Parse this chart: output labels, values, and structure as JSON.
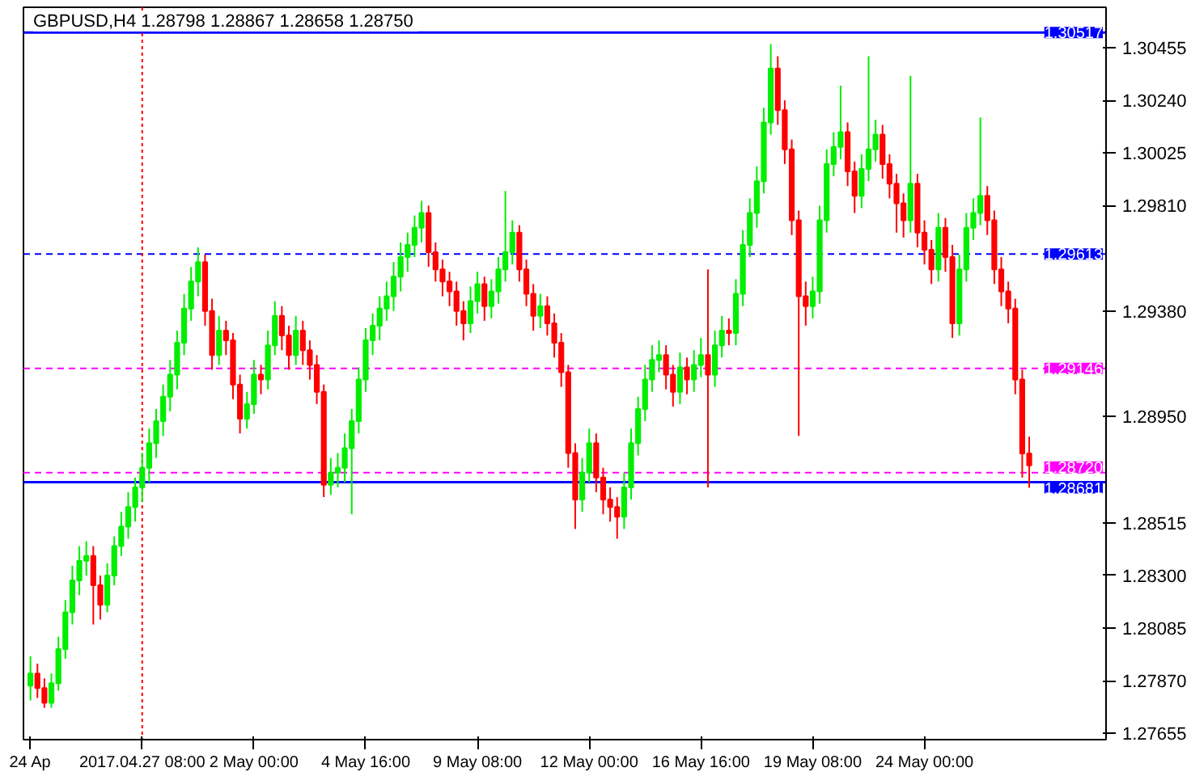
{
  "chart_data": {
    "type": "candlestick",
    "title": "GBPUSD,H4  1.28798 1.28867 1.28658 1.28750",
    "categories": [
      "24 Ap",
      null,
      null,
      null,
      null,
      null,
      null,
      null,
      null,
      null,
      null,
      null,
      null,
      null,
      null,
      null,
      "2017.04.27 08:00",
      null,
      null,
      null,
      null,
      null,
      null,
      null,
      null,
      null,
      null,
      null,
      null,
      null,
      null,
      null,
      "2 May 00:00",
      null,
      null,
      null,
      null,
      null,
      null,
      null,
      null,
      null,
      null,
      null,
      null,
      null,
      null,
      null,
      "4 May 16:00",
      null,
      null,
      null,
      null,
      null,
      null,
      null,
      null,
      null,
      null,
      null,
      null,
      null,
      null,
      null,
      "9 May 08:00",
      null,
      null,
      null,
      null,
      null,
      null,
      null,
      null,
      null,
      null,
      null,
      null,
      null,
      null,
      null,
      "12 May 00:00",
      null,
      null,
      null,
      null,
      null,
      null,
      null,
      null,
      null,
      null,
      null,
      null,
      null,
      null,
      null,
      "16 May 16:00",
      null,
      null,
      null,
      null,
      null,
      null,
      null,
      null,
      null,
      null,
      null,
      null,
      null,
      null,
      null,
      "19 May 08:00",
      null,
      null,
      null,
      null,
      null,
      null,
      null,
      null,
      null,
      null,
      null,
      null,
      null,
      null,
      null,
      "24 May 00:00",
      null,
      null,
      null,
      null,
      null,
      null,
      null,
      null,
      null,
      null,
      null,
      null,
      null,
      null,
      null
    ],
    "ohlc": [
      [
        1.2785,
        1.2797,
        1.2779,
        1.279
      ],
      [
        1.279,
        1.2794,
        1.278,
        1.2784
      ],
      [
        1.2784,
        1.2788,
        1.2776,
        1.2778
      ],
      [
        1.2778,
        1.279,
        1.2776,
        1.2786
      ],
      [
        1.2786,
        1.2805,
        1.2783,
        1.28
      ],
      [
        1.28,
        1.282,
        1.2796,
        1.2815
      ],
      [
        1.2815,
        1.2834,
        1.281,
        1.2828
      ],
      [
        1.2828,
        1.2842,
        1.2822,
        1.2836
      ],
      [
        1.2836,
        1.2844,
        1.283,
        1.2838
      ],
      [
        1.2838,
        1.2842,
        1.281,
        1.2826
      ],
      [
        1.2826,
        1.283,
        1.2812,
        1.2818
      ],
      [
        1.2818,
        1.2835,
        1.2815,
        1.283
      ],
      [
        1.283,
        1.2846,
        1.2826,
        1.2842
      ],
      [
        1.2842,
        1.2856,
        1.2838,
        1.285
      ],
      [
        1.285,
        1.2864,
        1.2845,
        1.2858
      ],
      [
        1.2858,
        1.287,
        1.2852,
        1.2866
      ],
      [
        1.2866,
        1.288,
        1.286,
        1.2874
      ],
      [
        1.2874,
        1.289,
        1.2868,
        1.2884
      ],
      [
        1.2884,
        1.2898,
        1.2878,
        1.2893
      ],
      [
        1.2893,
        1.2908,
        1.2887,
        1.2903
      ],
      [
        1.2903,
        1.2918,
        1.2897,
        1.2912
      ],
      [
        1.2912,
        1.293,
        1.2906,
        1.2925
      ],
      [
        1.2925,
        1.2945,
        1.292,
        1.2939
      ],
      [
        1.2939,
        1.2956,
        1.2934,
        1.295
      ],
      [
        1.295,
        1.2964,
        1.2944,
        1.2958
      ],
      [
        1.2958,
        1.2961,
        1.2932,
        1.2938
      ],
      [
        1.2938,
        1.2943,
        1.2914,
        1.292
      ],
      [
        1.292,
        1.2936,
        1.2916,
        1.293
      ],
      [
        1.293,
        1.2934,
        1.292,
        1.2926
      ],
      [
        1.2926,
        1.2929,
        1.2902,
        1.2908
      ],
      [
        1.2908,
        1.2912,
        1.2888,
        1.2894
      ],
      [
        1.2894,
        1.2905,
        1.289,
        1.29
      ],
      [
        1.29,
        1.2918,
        1.2896,
        1.2912
      ],
      [
        1.2912,
        1.2916,
        1.2904,
        1.291
      ],
      [
        1.291,
        1.293,
        1.2906,
        1.2924
      ],
      [
        1.2924,
        1.2942,
        1.292,
        1.2936
      ],
      [
        1.2936,
        1.294,
        1.2922,
        1.2928
      ],
      [
        1.2928,
        1.2932,
        1.2914,
        1.292
      ],
      [
        1.292,
        1.2936,
        1.2916,
        1.293
      ],
      [
        1.293,
        1.2934,
        1.2916,
        1.2922
      ],
      [
        1.2922,
        1.2926,
        1.291,
        1.2916
      ],
      [
        1.2916,
        1.292,
        1.29,
        1.2905
      ],
      [
        1.2905,
        1.2908,
        1.2862,
        1.2867
      ],
      [
        1.2867,
        1.2878,
        1.2863,
        1.2872
      ],
      [
        1.2872,
        1.288,
        1.2866,
        1.2874
      ],
      [
        1.2874,
        1.2888,
        1.2868,
        1.2882
      ],
      [
        1.2882,
        1.2898,
        1.2855,
        1.2893
      ],
      [
        1.2893,
        1.2915,
        1.2888,
        1.291
      ],
      [
        1.291,
        1.2931,
        1.2905,
        1.2926
      ],
      [
        1.2926,
        1.2937,
        1.292,
        1.2932
      ],
      [
        1.2932,
        1.2944,
        1.2926,
        1.2939
      ],
      [
        1.2939,
        1.295,
        1.2934,
        1.2944
      ],
      [
        1.2944,
        1.2958,
        1.2938,
        1.2952
      ],
      [
        1.2952,
        1.2966,
        1.2946,
        1.296
      ],
      [
        1.296,
        1.297,
        1.2954,
        1.2965
      ],
      [
        1.2965,
        1.2977,
        1.296,
        1.2972
      ],
      [
        1.2972,
        1.2983,
        1.2966,
        1.2978
      ],
      [
        1.2978,
        1.2981,
        1.2956,
        1.2962
      ],
      [
        1.2962,
        1.2966,
        1.295,
        1.2955
      ],
      [
        1.2955,
        1.2959,
        1.2944,
        1.295
      ],
      [
        1.295,
        1.2954,
        1.294,
        1.2946
      ],
      [
        1.2946,
        1.295,
        1.2932,
        1.2938
      ],
      [
        1.2938,
        1.2942,
        1.2926,
        1.2933
      ],
      [
        1.2933,
        1.2948,
        1.2929,
        1.2942
      ],
      [
        1.2942,
        1.2954,
        1.2937,
        1.2949
      ],
      [
        1.2949,
        1.2952,
        1.2934,
        1.294
      ],
      [
        1.294,
        1.2951,
        1.2935,
        1.2946
      ],
      [
        1.2946,
        1.296,
        1.2941,
        1.2955
      ],
      [
        1.2955,
        1.2987,
        1.295,
        1.2962
      ],
      [
        1.2962,
        1.2975,
        1.2957,
        1.297
      ],
      [
        1.297,
        1.2973,
        1.295,
        1.2955
      ],
      [
        1.2955,
        1.2959,
        1.294,
        1.2945
      ],
      [
        1.2945,
        1.2949,
        1.293,
        1.2936
      ],
      [
        1.2936,
        1.2945,
        1.2931,
        1.294
      ],
      [
        1.294,
        1.2944,
        1.2928,
        1.2933
      ],
      [
        1.2933,
        1.2937,
        1.2919,
        1.2925
      ],
      [
        1.2925,
        1.2929,
        1.2907,
        1.2913
      ],
      [
        1.2913,
        1.2916,
        1.2874,
        1.288
      ],
      [
        1.288,
        1.2884,
        1.2849,
        1.2861
      ],
      [
        1.2861,
        1.2878,
        1.2856,
        1.2872
      ],
      [
        1.2872,
        1.289,
        1.2868,
        1.2884
      ],
      [
        1.2884,
        1.2888,
        1.2864,
        1.287
      ],
      [
        1.287,
        1.2874,
        1.2855,
        1.2861
      ],
      [
        1.2861,
        1.2866,
        1.2852,
        1.2858
      ],
      [
        1.2858,
        1.2862,
        1.2845,
        1.2854
      ],
      [
        1.2854,
        1.2872,
        1.2849,
        1.2866
      ],
      [
        1.2866,
        1.289,
        1.2861,
        1.2884
      ],
      [
        1.2884,
        1.2903,
        1.2879,
        1.2898
      ],
      [
        1.2898,
        1.2916,
        1.2893,
        1.291
      ],
      [
        1.291,
        1.2924,
        1.2905,
        1.2918
      ],
      [
        1.2918,
        1.2926,
        1.2913,
        1.292
      ],
      [
        1.292,
        1.2924,
        1.2906,
        1.2912
      ],
      [
        1.2912,
        1.2916,
        1.2899,
        1.2905
      ],
      [
        1.2905,
        1.2921,
        1.29,
        1.2915
      ],
      [
        1.2915,
        1.2919,
        1.2904,
        1.291
      ],
      [
        1.291,
        1.2922,
        1.2905,
        1.2916
      ],
      [
        1.2916,
        1.2927,
        1.2911,
        1.292
      ],
      [
        1.292,
        1.2955,
        1.2866,
        1.2912
      ],
      [
        1.2912,
        1.293,
        1.2907,
        1.2924
      ],
      [
        1.2924,
        1.2936,
        1.2919,
        1.293
      ],
      [
        1.293,
        1.2935,
        1.2924,
        1.2929
      ],
      [
        1.2929,
        1.2951,
        1.2924,
        1.2945
      ],
      [
        1.2945,
        1.2971,
        1.294,
        1.2965
      ],
      [
        1.2965,
        1.2984,
        1.296,
        1.2978
      ],
      [
        1.2978,
        1.2997,
        1.2972,
        1.2991
      ],
      [
        1.2991,
        1.3021,
        1.2986,
        1.3015
      ],
      [
        1.3015,
        1.3047,
        1.301,
        1.3037
      ],
      [
        1.3037,
        1.3042,
        1.3014,
        1.302
      ],
      [
        1.302,
        1.3024,
        1.2998,
        1.3004
      ],
      [
        1.3004,
        1.3008,
        1.2969,
        1.2975
      ],
      [
        1.2975,
        1.2979,
        1.2887,
        1.2944
      ],
      [
        1.2944,
        1.295,
        1.2932,
        1.294
      ],
      [
        1.294,
        1.2952,
        1.2935,
        1.2946
      ],
      [
        1.2946,
        1.2981,
        1.2941,
        1.2975
      ],
      [
        1.2975,
        1.3004,
        1.297,
        1.2998
      ],
      [
        1.2998,
        1.3011,
        1.2993,
        1.3005
      ],
      [
        1.3005,
        1.303,
        1.3,
        1.3011
      ],
      [
        1.3011,
        1.3015,
        1.2989,
        1.2995
      ],
      [
        1.2995,
        1.2999,
        1.2978,
        1.2985
      ],
      [
        1.2985,
        1.3002,
        1.298,
        1.2996
      ],
      [
        1.2996,
        1.3042,
        1.2991,
        1.3004
      ],
      [
        1.3004,
        1.3016,
        1.2999,
        1.301
      ],
      [
        1.301,
        1.3014,
        1.2992,
        1.2998
      ],
      [
        1.2998,
        1.3002,
        1.2984,
        1.299
      ],
      [
        1.299,
        1.2994,
        1.297,
        1.2982
      ],
      [
        1.2982,
        1.2986,
        1.2968,
        1.2975
      ],
      [
        1.2975,
        1.3034,
        1.297,
        1.299
      ],
      [
        1.299,
        1.2994,
        1.2964,
        1.297
      ],
      [
        1.297,
        1.2975,
        1.2957,
        1.2963
      ],
      [
        1.2963,
        1.2967,
        1.2949,
        1.2955
      ],
      [
        1.2955,
        1.2978,
        1.295,
        1.2972
      ],
      [
        1.2972,
        1.2976,
        1.2954,
        1.296
      ],
      [
        1.296,
        1.2965,
        1.2927,
        1.2933
      ],
      [
        1.2933,
        1.2961,
        1.2928,
        1.2955
      ],
      [
        1.2955,
        1.2978,
        1.295,
        1.2972
      ],
      [
        1.2972,
        1.2984,
        1.2967,
        1.2978
      ],
      [
        1.2978,
        1.3017,
        1.2973,
        1.2985
      ],
      [
        1.2985,
        1.2989,
        1.2969,
        1.2975
      ],
      [
        1.2975,
        1.2979,
        1.2949,
        1.2955
      ],
      [
        1.2955,
        1.296,
        1.294,
        1.2946
      ],
      [
        1.2946,
        1.295,
        1.2933,
        1.2939
      ],
      [
        1.2939,
        1.2943,
        1.2904,
        1.291
      ],
      [
        1.291,
        1.2914,
        1.287,
        1.28798
      ],
      [
        1.28798,
        1.28867,
        1.28658,
        1.2875
      ]
    ],
    "ylim": [
      1.2763,
      1.3062
    ],
    "yticks": [
      {
        "value": 1.30455,
        "label": "1.30455"
      },
      {
        "value": 1.3024,
        "label": "1.30240"
      },
      {
        "value": 1.30025,
        "label": "1.30025"
      },
      {
        "value": 1.2981,
        "label": "1.29810"
      },
      {
        "value": 1.2938,
        "label": "1.29380"
      },
      {
        "value": 1.2895,
        "label": "1.28950"
      },
      {
        "value": 1.28515,
        "label": "1.28515"
      },
      {
        "value": 1.283,
        "label": "1.28300"
      },
      {
        "value": 1.28085,
        "label": "1.28085"
      },
      {
        "value": 1.2787,
        "label": "1.27870"
      },
      {
        "value": 1.27655,
        "label": "1.27655"
      }
    ],
    "ref_lines": [
      {
        "axis": "y",
        "value": 1.30517,
        "label": "1.30517",
        "color": "#0000ff",
        "line_style": "solid"
      },
      {
        "axis": "y",
        "value": 1.29613,
        "label": "1.29613",
        "color": "#0000ff",
        "line_style": "dashed"
      },
      {
        "axis": "y",
        "value": 1.29146,
        "label": "1.29146",
        "color": "#ff00ff",
        "line_style": "dashed"
      },
      {
        "axis": "y",
        "value": 1.2872,
        "label": "1.28720",
        "color": "#ff00ff",
        "line_style": "dashed"
      },
      {
        "axis": "y",
        "value": 1.28681,
        "label": "1.28681",
        "color": "#0000ff",
        "line_style": "solid"
      },
      {
        "axis": "x",
        "value": "2017.04.27 08:00",
        "color": "#ff0000",
        "line_style": "dotted"
      }
    ],
    "grid": false
  }
}
